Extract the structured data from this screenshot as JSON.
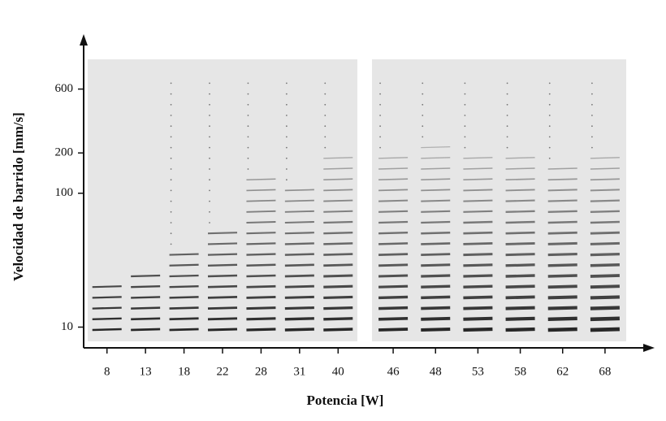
{
  "chart_data": {
    "type": "track-grid",
    "x_label": "Potencia [W]",
    "y_label": "Velocidad de barrido [mm/s]",
    "categories": [
      "8",
      "13",
      "18",
      "22",
      "28",
      "31",
      "40",
      "46",
      "48",
      "53",
      "58",
      "62",
      "68"
    ],
    "y_scale": "log",
    "ylim": [
      7,
      1200
    ],
    "yticks": [
      10,
      100,
      200,
      600
    ]
  }
}
